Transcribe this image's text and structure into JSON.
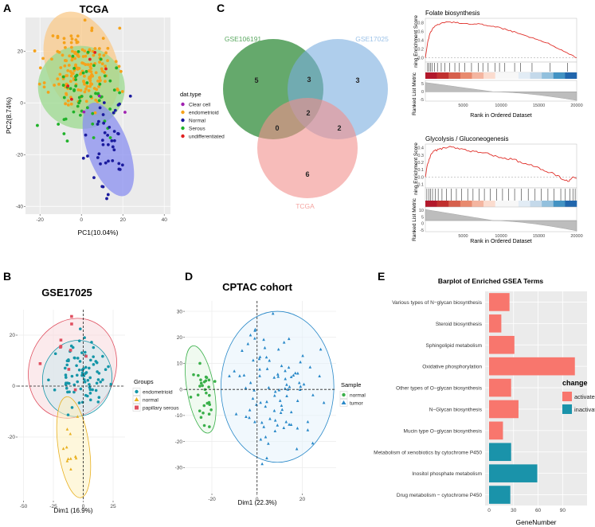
{
  "panels": {
    "A": {
      "letter": "A",
      "title": "TCGA"
    },
    "B": {
      "letter": "B",
      "title": "GSE17025"
    },
    "C": {
      "letter": "C"
    },
    "D": {
      "letter": "D",
      "title": "CPTAC cohort"
    },
    "E": {
      "letter": "E",
      "title": "Barplot of Enriched GSEA Terms"
    }
  },
  "chart_data": [
    {
      "id": "A",
      "type": "scatter",
      "title": "TCGA",
      "xlabel": "PC1(10.04%)",
      "ylabel": "PC2(8.74%)",
      "xlim": [
        -27,
        43
      ],
      "ylim": [
        -43,
        33
      ],
      "xticks": [
        -20,
        0,
        20,
        40
      ],
      "yticks": [
        -40,
        -20,
        0,
        20
      ],
      "legend_title": "dat.type",
      "series": [
        {
          "name": "Clear cell",
          "color": "#a020b0"
        },
        {
          "name": "endometrioid",
          "color": "#f5a21b"
        },
        {
          "name": "Normal",
          "color": "#1b1b9e"
        },
        {
          "name": "Serous",
          "color": "#20b22a"
        },
        {
          "name": "undifferentiated",
          "color": "#e02020"
        }
      ],
      "ellipses": [
        {
          "group": "endometrioid",
          "cx": 0,
          "cy": 15,
          "rx": 17,
          "ry": 21,
          "angle": 20,
          "fill": "#f9c98a"
        },
        {
          "group": "Serous",
          "cx": 0,
          "cy": 6,
          "rx": 21,
          "ry": 16,
          "angle": -10,
          "fill": "#9bd98e"
        },
        {
          "group": "Normal",
          "cx": 13,
          "cy": -18,
          "rx": 10,
          "ry": 19,
          "angle": 20,
          "fill": "#8a8ff0"
        }
      ],
      "clusters": [
        {
          "group": "endometrioid",
          "cx": 0,
          "cy": 13,
          "sx": 8,
          "sy": 8,
          "n": 170
        },
        {
          "group": "Serous",
          "cx": 3,
          "cy": 5,
          "sx": 9,
          "sy": 8,
          "n": 55
        },
        {
          "group": "Normal",
          "cx": 12,
          "cy": -15,
          "sx": 5,
          "sy": 10,
          "n": 42
        },
        {
          "group": "undifferentiated",
          "cx": 6,
          "cy": 6,
          "sx": 8,
          "sy": 8,
          "n": 5
        },
        {
          "group": "Clear cell",
          "cx": 8,
          "cy": 2,
          "sx": 6,
          "sy": 6,
          "n": 3
        }
      ]
    },
    {
      "id": "B",
      "type": "scatter",
      "title": "GSE17025",
      "xlabel": "Dim1 (16.9%)",
      "ylabel": "",
      "xlim": [
        -55,
        35
      ],
      "ylim": [
        -45,
        30
      ],
      "xticks": [
        -50,
        -25,
        0,
        25
      ],
      "yticks": [
        -20,
        0,
        20
      ],
      "legend_title": "Groups",
      "series": [
        {
          "name": "endometrioid",
          "color": "#1596a8",
          "marker": "circle"
        },
        {
          "name": "normal",
          "color": "#e8b020",
          "marker": "triangle"
        },
        {
          "name": "papillary serous",
          "color": "#e05060",
          "marker": "square"
        }
      ],
      "ellipses": [
        {
          "group": "papillary serous",
          "cx": -9,
          "cy": 7,
          "rx": 36,
          "ry": 20,
          "angle": -22,
          "fill": "#f8d8dc"
        },
        {
          "group": "endometrioid",
          "cx": -5,
          "cy": 3,
          "rx": 29,
          "ry": 15,
          "angle": -10,
          "fill": "#cde8ee"
        },
        {
          "group": "normal",
          "cx": -8,
          "cy": -24,
          "rx": 13,
          "ry": 20,
          "angle": 8,
          "fill": "#fdf0c0"
        }
      ],
      "clusters": [
        {
          "group": "endometrioid",
          "cx": -2,
          "cy": 4,
          "sx": 10,
          "sy": 6,
          "n": 85
        },
        {
          "group": "normal",
          "cx": -10,
          "cy": -22,
          "sx": 4,
          "sy": 7,
          "n": 11
        },
        {
          "group": "papillary serous",
          "cx": -15,
          "cy": 12,
          "sx": 10,
          "sy": 6,
          "n": 10
        }
      ]
    },
    {
      "id": "D",
      "type": "scatter",
      "title": "CPTAC cohort",
      "xlabel": "Dim1 (22.3%)",
      "ylabel": "",
      "xlim": [
        -32,
        35
      ],
      "ylim": [
        -40,
        34
      ],
      "xticks": [
        -20,
        0,
        20
      ],
      "yticks": [
        -30,
        -20,
        -10,
        0,
        10,
        20,
        30
      ],
      "legend_title": "Sample",
      "series": [
        {
          "name": "normal",
          "color": "#3ab04a",
          "marker": "circle"
        },
        {
          "name": "tumor",
          "color": "#2888c8",
          "marker": "triangle"
        }
      ],
      "ellipses": [
        {
          "group": "tumor",
          "cx": 9,
          "cy": 1,
          "rx": 25,
          "ry": 29,
          "angle": 0,
          "fill": "#e6f2fc"
        },
        {
          "group": "normal",
          "cx": -25,
          "cy": 0,
          "rx": 6,
          "ry": 17,
          "angle": 10,
          "fill": "#e4f5e4"
        }
      ],
      "clusters": [
        {
          "group": "tumor",
          "cx": 9,
          "cy": 0,
          "sx": 9,
          "sy": 12,
          "n": 95
        },
        {
          "group": "normal",
          "cx": -24,
          "cy": -1,
          "sx": 2.5,
          "sy": 7,
          "n": 30
        }
      ]
    },
    {
      "id": "C",
      "type": "venn",
      "sets": [
        {
          "name": "GSE106191",
          "color": "#4a9a52",
          "label_color": "#5aa860"
        },
        {
          "name": "GSE17025",
          "color": "#7aaee0",
          "label_color": "#9cc2e8"
        },
        {
          "name": "TCGA",
          "color": "#f28f8c",
          "label_color": "#f4a4a0"
        }
      ],
      "regions": {
        "only_GSE106191": 5,
        "GSE106191_GSE17025": 3,
        "only_GSE17025": 3,
        "GSE106191_TCGA": 0,
        "all": 2,
        "GSE17025_TCGA": 2,
        "only_TCGA": 6
      }
    },
    {
      "id": "C-gsea-1",
      "type": "line",
      "title": "Folate biosynthesis",
      "ylabel_top": "ning Enrichment Score",
      "ylabel_bottom": "Ranked List Metric",
      "xlabel": "Rank in Ordered Dataset",
      "xticks": [
        5000,
        10000,
        15000,
        20000
      ],
      "xlim": [
        0,
        20000
      ],
      "es_ylim": [
        -0.1,
        0.9
      ],
      "es_yticks": [
        "0.8",
        "0.6",
        "0.4",
        "0.2",
        "0.0"
      ],
      "metric_yticks": [
        "5",
        "0",
        "-5"
      ],
      "es_x": [
        0,
        300,
        600,
        1000,
        1500,
        2000,
        3000,
        4000,
        5000,
        6000,
        7000,
        8000,
        9000,
        10000,
        11000,
        12000,
        13000,
        14000,
        15000,
        16000,
        17000,
        18000,
        19000,
        20000
      ],
      "es_y": [
        0,
        0.35,
        0.55,
        0.68,
        0.74,
        0.78,
        0.82,
        0.8,
        0.78,
        0.76,
        0.78,
        0.74,
        0.72,
        0.68,
        0.62,
        0.58,
        0.52,
        0.46,
        0.4,
        0.34,
        0.26,
        0.18,
        0.08,
        0.0
      ],
      "hits": [
        300,
        500,
        700,
        900,
        1200,
        1600,
        2100,
        2600,
        3200,
        3900,
        4500,
        5200,
        6100,
        7000,
        7600,
        8300,
        9200,
        9800,
        10500,
        11800,
        12600,
        14100,
        16500,
        18800
      ]
    },
    {
      "id": "C-gsea-2",
      "type": "line",
      "title": "Glycolysis / Gluconeogenesis",
      "ylabel_top": "ning Enrichment Score",
      "ylabel_bottom": "Ranked List Metric",
      "xlabel": "Rank in Ordered Dataset",
      "xticks": [
        5000,
        10000,
        15000,
        20000
      ],
      "xlim": [
        0,
        20000
      ],
      "es_ylim": [
        -0.15,
        0.45
      ],
      "es_yticks": [
        "0.4",
        "0.3",
        "0.2",
        "0.1",
        "0.0",
        "-0.1"
      ],
      "metric_yticks": [
        "10",
        "5",
        "0",
        "-5"
      ],
      "es_x": [
        0,
        300,
        700,
        1200,
        1800,
        2500,
        3500,
        4500,
        5500,
        6500,
        7500,
        8500,
        9500,
        10500,
        11500,
        12500,
        13500,
        14500,
        15500,
        16500,
        17500,
        18300,
        19000,
        19500,
        20000
      ],
      "es_y": [
        0,
        0.18,
        0.3,
        0.36,
        0.38,
        0.4,
        0.41,
        0.38,
        0.36,
        0.35,
        0.33,
        0.31,
        0.28,
        0.26,
        0.24,
        0.21,
        0.17,
        0.14,
        0.1,
        0.06,
        0.02,
        -0.04,
        -0.06,
        0.0,
        -0.02
      ],
      "hits": [
        200,
        450,
        700,
        950,
        1300,
        1700,
        2200,
        2800,
        3400,
        4100,
        4800,
        5600,
        6300,
        7100,
        7800,
        8600,
        9400,
        10200,
        11000,
        11800,
        12700,
        13600,
        14500,
        15300,
        16200,
        17000,
        17900,
        18500,
        19100,
        19500,
        19800
      ]
    },
    {
      "id": "E",
      "type": "bar",
      "orientation": "horizontal",
      "title": "Barplot of Enriched GSEA Terms",
      "xlabel": "GeneNumber",
      "ylabel": "",
      "xlim": [
        0,
        115
      ],
      "xticks": [
        0,
        30,
        60,
        90
      ],
      "legend_title": "change",
      "legend": [
        {
          "name": "activated",
          "color": "#f8766d"
        },
        {
          "name": "inactivated",
          "color": "#1a93aa"
        }
      ],
      "categories": [
        "Various types of N−glycan biosynthesis",
        "Steroid biosynthesis",
        "Sphingolipid metabolism",
        "Oxidative phosphorylation",
        "Other types of O−glycan biosynthesis",
        "N−Glycan biosynthesis",
        "Mucin type O−glycan biosynthesis",
        "Metabolism of xenobiotics by cytochrome P450",
        "Inositol phosphate metabolism",
        "Drug metabolism − cytochrome P450"
      ],
      "values": [
        25,
        15,
        31,
        105,
        27,
        36,
        17,
        27,
        59,
        26
      ],
      "change": [
        "activated",
        "activated",
        "activated",
        "activated",
        "activated",
        "activated",
        "activated",
        "inactivated",
        "inactivated",
        "inactivated"
      ]
    }
  ]
}
